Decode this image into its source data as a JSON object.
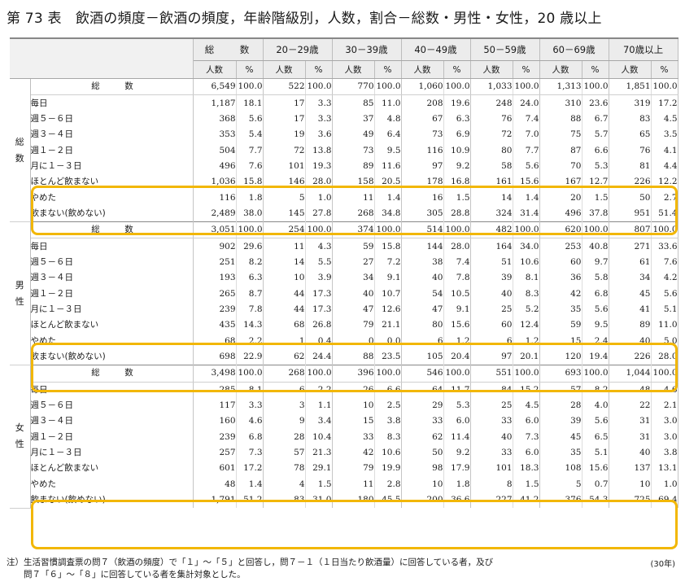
{
  "title": "第 73 表　飲酒の頻度－飲酒の頻度，年齢階級別，人数，割合－総数・男性・女性，20 歳以上",
  "header": {
    "groups": [
      "総　数",
      "20－29歳",
      "30－39歳",
      "40－49歳",
      "50－59歳",
      "60－69歳",
      "70歳以上"
    ],
    "sub": [
      "人数",
      "%"
    ]
  },
  "sections": [
    {
      "label": "総数",
      "rows": [
        {
          "label": "総　数",
          "values": [
            "6,549",
            "100.0",
            "522",
            "100.0",
            "770",
            "100.0",
            "1,060",
            "100.0",
            "1,033",
            "100.0",
            "1,313",
            "100.0",
            "1,851",
            "100.0"
          ]
        },
        {
          "label": "毎日",
          "values": [
            "1,187",
            "18.1",
            "17",
            "3.3",
            "85",
            "11.0",
            "208",
            "19.6",
            "248",
            "24.0",
            "310",
            "23.6",
            "319",
            "17.2"
          ]
        },
        {
          "label": "週５－６日",
          "values": [
            "368",
            "5.6",
            "17",
            "3.3",
            "37",
            "4.8",
            "67",
            "6.3",
            "76",
            "7.4",
            "88",
            "6.7",
            "83",
            "4.5"
          ]
        },
        {
          "label": "週３－４日",
          "values": [
            "353",
            "5.4",
            "19",
            "3.6",
            "49",
            "6.4",
            "73",
            "6.9",
            "72",
            "7.0",
            "75",
            "5.7",
            "65",
            "3.5"
          ]
        },
        {
          "label": "週１－２日",
          "values": [
            "504",
            "7.7",
            "72",
            "13.8",
            "73",
            "9.5",
            "116",
            "10.9",
            "80",
            "7.7",
            "87",
            "6.6",
            "76",
            "4.1"
          ]
        },
        {
          "label": "月に１－３日",
          "values": [
            "496",
            "7.6",
            "101",
            "19.3",
            "89",
            "11.6",
            "97",
            "9.2",
            "58",
            "5.6",
            "70",
            "5.3",
            "81",
            "4.4"
          ]
        },
        {
          "label": "ほとんど飲まない",
          "values": [
            "1,036",
            "15.8",
            "146",
            "28.0",
            "158",
            "20.5",
            "178",
            "16.8",
            "161",
            "15.6",
            "167",
            "12.7",
            "226",
            "12.2"
          ]
        },
        {
          "label": "やめた",
          "values": [
            "116",
            "1.8",
            "5",
            "1.0",
            "11",
            "1.4",
            "16",
            "1.5",
            "14",
            "1.4",
            "20",
            "1.5",
            "50",
            "2.7"
          ]
        },
        {
          "label": "飲まない(飲めない)",
          "values": [
            "2,489",
            "38.0",
            "145",
            "27.8",
            "268",
            "34.8",
            "305",
            "28.8",
            "324",
            "31.4",
            "496",
            "37.8",
            "951",
            "51.4"
          ]
        }
      ]
    },
    {
      "label": "男性",
      "rows": [
        {
          "label": "総　数",
          "values": [
            "3,051",
            "100.0",
            "254",
            "100.0",
            "374",
            "100.0",
            "514",
            "100.0",
            "482",
            "100.0",
            "620",
            "100.0",
            "807",
            "100.0"
          ]
        },
        {
          "label": "毎日",
          "values": [
            "902",
            "29.6",
            "11",
            "4.3",
            "59",
            "15.8",
            "144",
            "28.0",
            "164",
            "34.0",
            "253",
            "40.8",
            "271",
            "33.6"
          ]
        },
        {
          "label": "週５－６日",
          "values": [
            "251",
            "8.2",
            "14",
            "5.5",
            "27",
            "7.2",
            "38",
            "7.4",
            "51",
            "10.6",
            "60",
            "9.7",
            "61",
            "7.6"
          ]
        },
        {
          "label": "週３－４日",
          "values": [
            "193",
            "6.3",
            "10",
            "3.9",
            "34",
            "9.1",
            "40",
            "7.8",
            "39",
            "8.1",
            "36",
            "5.8",
            "34",
            "4.2"
          ]
        },
        {
          "label": "週１－２日",
          "values": [
            "265",
            "8.7",
            "44",
            "17.3",
            "40",
            "10.7",
            "54",
            "10.5",
            "40",
            "8.3",
            "42",
            "6.8",
            "45",
            "5.6"
          ]
        },
        {
          "label": "月に１－３日",
          "values": [
            "239",
            "7.8",
            "44",
            "17.3",
            "47",
            "12.6",
            "47",
            "9.1",
            "25",
            "5.2",
            "35",
            "5.6",
            "41",
            "5.1"
          ]
        },
        {
          "label": "ほとんど飲まない",
          "values": [
            "435",
            "14.3",
            "68",
            "26.8",
            "79",
            "21.1",
            "80",
            "15.6",
            "60",
            "12.4",
            "59",
            "9.5",
            "89",
            "11.0"
          ]
        },
        {
          "label": "やめた",
          "values": [
            "68",
            "2.2",
            "1",
            "0.4",
            "0",
            "0.0",
            "6",
            "1.2",
            "6",
            "1.2",
            "15",
            "2.4",
            "40",
            "5.0"
          ]
        },
        {
          "label": "飲まない(飲めない)",
          "values": [
            "698",
            "22.9",
            "62",
            "24.4",
            "88",
            "23.5",
            "105",
            "20.4",
            "97",
            "20.1",
            "120",
            "19.4",
            "226",
            "28.0"
          ]
        }
      ]
    },
    {
      "label": "女性",
      "rows": [
        {
          "label": "総　数",
          "values": [
            "3,498",
            "100.0",
            "268",
            "100.0",
            "396",
            "100.0",
            "546",
            "100.0",
            "551",
            "100.0",
            "693",
            "100.0",
            "1,044",
            "100.0"
          ]
        },
        {
          "label": "毎日",
          "values": [
            "285",
            "8.1",
            "6",
            "2.2",
            "26",
            "6.6",
            "64",
            "11.7",
            "84",
            "15.2",
            "57",
            "8.2",
            "48",
            "4.6"
          ]
        },
        {
          "label": "週５－６日",
          "values": [
            "117",
            "3.3",
            "3",
            "1.1",
            "10",
            "2.5",
            "29",
            "5.3",
            "25",
            "4.5",
            "28",
            "4.0",
            "22",
            "2.1"
          ]
        },
        {
          "label": "週３－４日",
          "values": [
            "160",
            "4.6",
            "9",
            "3.4",
            "15",
            "3.8",
            "33",
            "6.0",
            "33",
            "6.0",
            "39",
            "5.6",
            "31",
            "3.0"
          ]
        },
        {
          "label": "週１－２日",
          "values": [
            "239",
            "6.8",
            "28",
            "10.4",
            "33",
            "8.3",
            "62",
            "11.4",
            "40",
            "7.3",
            "45",
            "6.5",
            "31",
            "3.0"
          ]
        },
        {
          "label": "月に１－３日",
          "values": [
            "257",
            "7.3",
            "57",
            "21.3",
            "42",
            "10.6",
            "50",
            "9.2",
            "33",
            "6.0",
            "35",
            "5.1",
            "40",
            "3.8"
          ]
        },
        {
          "label": "ほとんど飲まない",
          "values": [
            "601",
            "17.2",
            "78",
            "29.1",
            "79",
            "19.9",
            "98",
            "17.9",
            "101",
            "18.3",
            "108",
            "15.6",
            "137",
            "13.1"
          ]
        },
        {
          "label": "やめた",
          "values": [
            "48",
            "1.4",
            "4",
            "1.5",
            "11",
            "2.8",
            "10",
            "1.8",
            "8",
            "1.5",
            "5",
            "0.7",
            "10",
            "1.0"
          ]
        },
        {
          "label": "飲まない(飲めない)",
          "values": [
            "1,791",
            "51.2",
            "83",
            "31.0",
            "180",
            "45.5",
            "200",
            "36.6",
            "227",
            "41.2",
            "376",
            "54.3",
            "725",
            "69.4"
          ]
        }
      ]
    }
  ],
  "note": {
    "prefix": "注）",
    "lines": [
      "生活習慣調査票の問７（飲酒の頻度）で「１」～「５」と回答し，問７－１（１日当たり飲酒量）に回答している者，及び",
      "問７「６」～「８」に回答している者を集計対象とした。"
    ],
    "year": "(30年)"
  },
  "highlight_color": "#f2b705"
}
